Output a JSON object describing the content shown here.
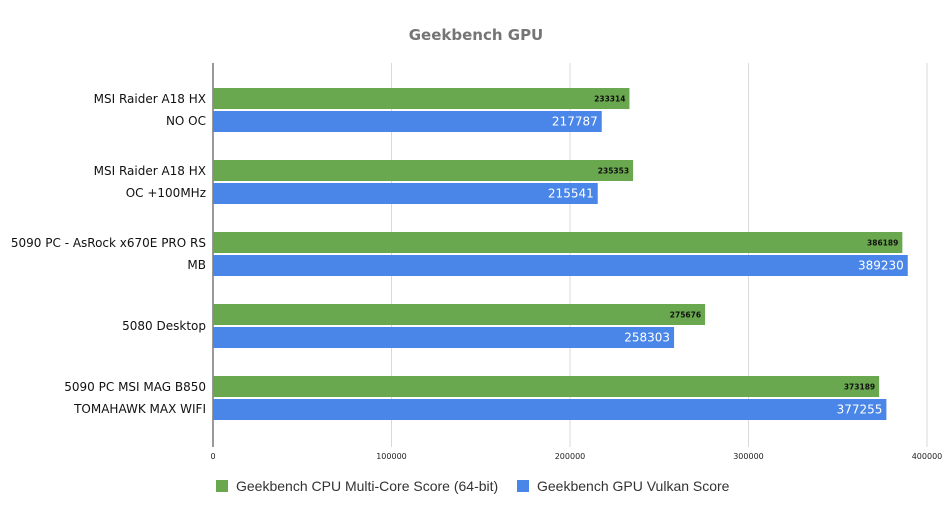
{
  "chart_data": {
    "type": "bar",
    "orientation": "horizontal",
    "title": "Geekbench GPU",
    "categories": [
      [
        "MSI Raider A18 HX",
        "NO OC"
      ],
      [
        "MSI Raider A18 HX",
        "OC +100MHz"
      ],
      [
        "5090 PC - AsRock x670E PRO RS",
        "MB"
      ],
      [
        "5080 Desktop"
      ],
      [
        "5090 PC MSI MAG B850",
        "TOMAHAWK MAX WIFI"
      ]
    ],
    "series": [
      {
        "name": "Geekbench CPU Multi-Core Score (64-bit)",
        "color": "#6aa84f",
        "values": [
          233314,
          235353,
          386189,
          275676,
          373189
        ]
      },
      {
        "name": "Geekbench GPU Vulkan Score",
        "color": "#4a86e8",
        "values": [
          217787,
          215541,
          389230,
          258303,
          377255
        ]
      }
    ],
    "xlim": [
      0,
      400000
    ],
    "xticks": [
      "0",
      "100000",
      "200000",
      "300000",
      "400000"
    ],
    "xtick_values": [
      0,
      100000,
      200000,
      300000,
      400000
    ],
    "grid": true,
    "legend_position": "bottom"
  }
}
